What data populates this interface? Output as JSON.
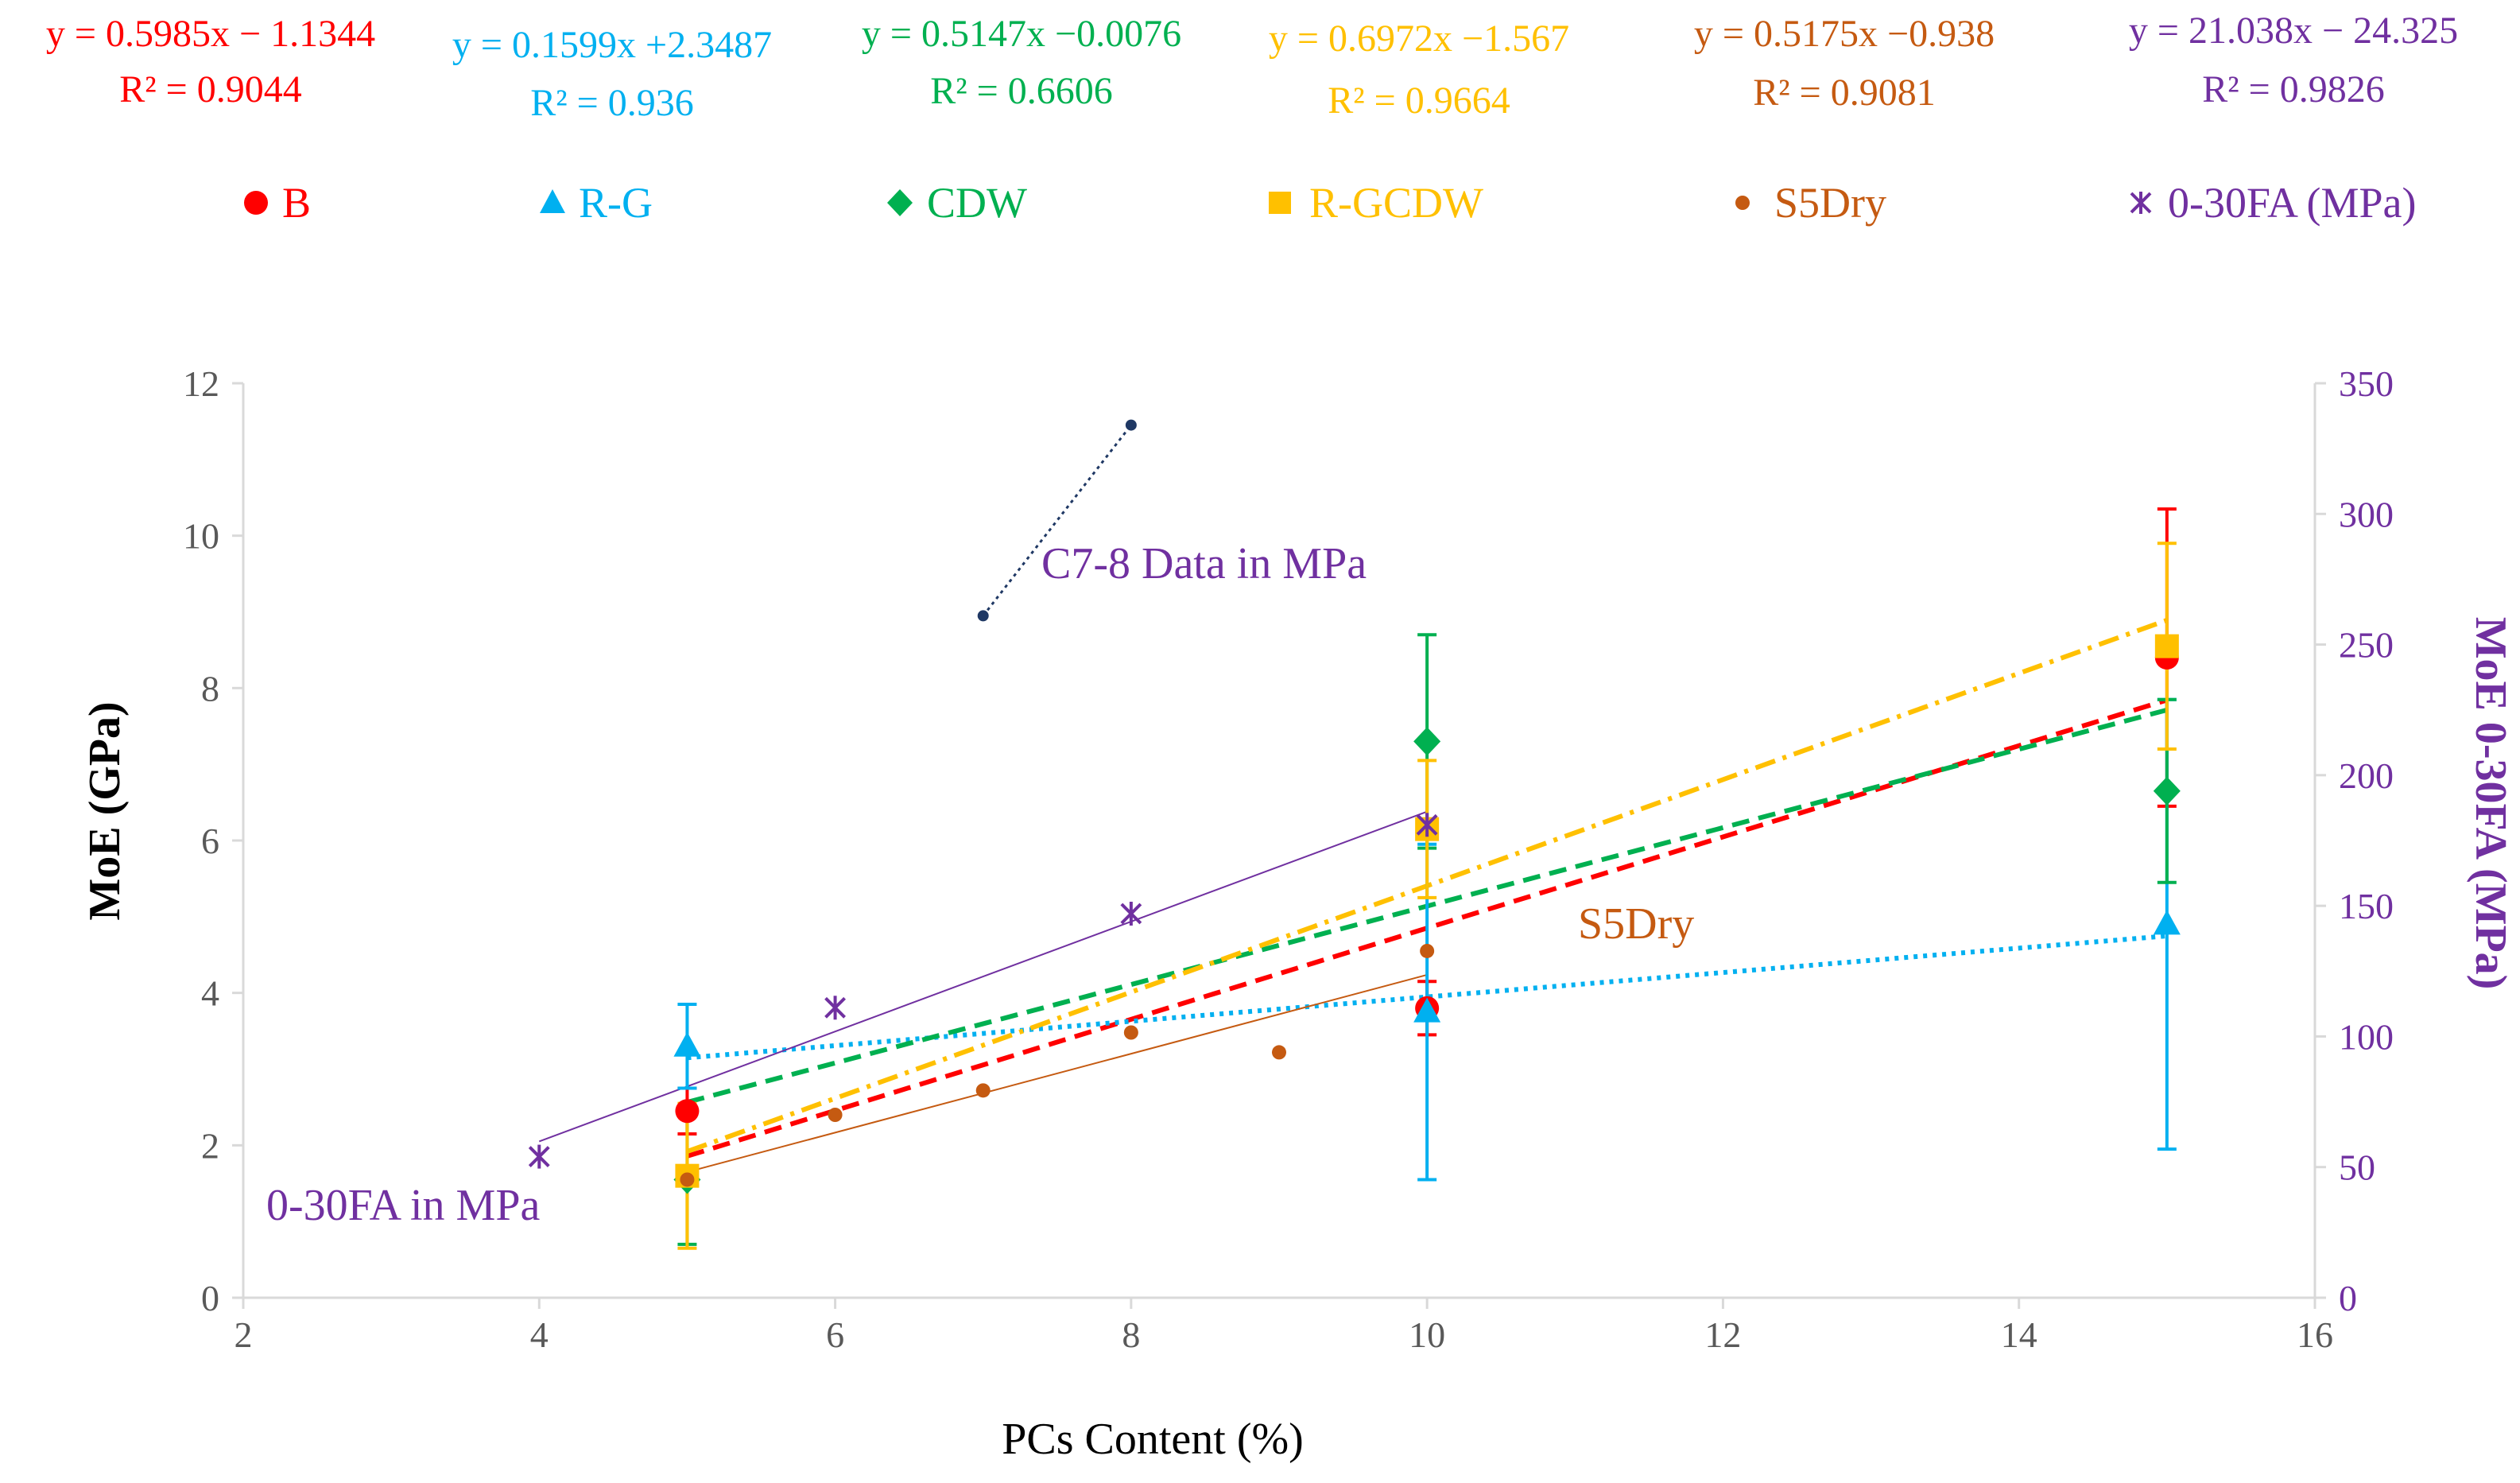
{
  "chart_data": {
    "type": "scatter",
    "xlabel": "PCs Content  (%)",
    "ylabel": "MoE (GPa)",
    "y2label": "MoE 0-30FA (MPa)",
    "xlim": [
      2,
      16
    ],
    "ylim": [
      0,
      12
    ],
    "y2lim": [
      0,
      350
    ],
    "xticks": [
      2,
      4,
      6,
      8,
      10,
      12,
      14,
      16
    ],
    "yticks": [
      0,
      2,
      4,
      6,
      8,
      10,
      12
    ],
    "y2ticks": [
      0,
      50,
      100,
      150,
      200,
      250,
      300,
      350
    ],
    "grid": false,
    "legend_position": "top",
    "series": [
      {
        "name": "B",
        "color": "#ff0000",
        "marker": "circle",
        "axis": "left",
        "x": [
          5,
          10,
          15
        ],
        "y": [
          2.45,
          3.8,
          8.4
        ],
        "err": [
          0.3,
          0.35,
          1.95
        ],
        "trend": {
          "slope": 0.5985,
          "intercept": -1.1344,
          "style": "dash",
          "range": [
            5,
            15
          ]
        },
        "equation": "y = 0.5985x − 1.1344",
        "r2": "R² = 0.9044"
      },
      {
        "name": "R-G",
        "color": "#00b0f0",
        "marker": "triangle",
        "axis": "left",
        "x": [
          5,
          10,
          15
        ],
        "y": [
          3.3,
          3.75,
          4.9
        ],
        "err": [
          0.55,
          2.2,
          2.95
        ],
        "trend": {
          "slope": 0.1599,
          "intercept": 2.3487,
          "style": "dot",
          "range": [
            5,
            15
          ]
        },
        "equation": "y = 0.1599x +2.3487",
        "r2": "R² = 0.936"
      },
      {
        "name": "CDW",
        "color": "#00b050",
        "marker": "diamond",
        "axis": "left",
        "x": [
          5,
          10,
          15
        ],
        "y": [
          1.55,
          7.3,
          6.65
        ],
        "err": [
          0.85,
          1.4,
          1.2
        ],
        "trend": {
          "slope": 0.5147,
          "intercept": -0.0076,
          "style": "dash",
          "range": [
            5,
            15
          ]
        },
        "equation": "y = 0.5147x −0.0076",
        "r2": "R² = 0.6606"
      },
      {
        "name": "R-GCDW",
        "color": "#ffc000",
        "marker": "square",
        "axis": "left",
        "x": [
          5,
          10,
          15
        ],
        "y": [
          1.6,
          6.15,
          8.55
        ],
        "err": [
          0.95,
          0.9,
          1.35
        ],
        "trend": {
          "slope": 0.6972,
          "intercept": -1.567,
          "style": "dashdot",
          "range": [
            5,
            15
          ]
        },
        "equation": "y = 0.6972x −1.567",
        "r2": "R² = 0.9664"
      },
      {
        "name": "S5Dry",
        "color": "#c55a11",
        "marker": "smallcircle",
        "axis": "left",
        "x": [
          5,
          6,
          7,
          8,
          9,
          10
        ],
        "y": [
          1.55,
          2.4,
          2.72,
          3.48,
          3.22,
          4.55
        ],
        "trend": {
          "slope": 0.5175,
          "intercept": -0.938,
          "style": "thin",
          "range": [
            5,
            10
          ]
        },
        "equation": "y = 0.5175x −0.938",
        "r2": "R² = 0.9081"
      },
      {
        "name": "0-30FA (MPa)",
        "color": "#7030a0",
        "marker": "star",
        "axis": "right",
        "x": [
          4,
          6,
          8,
          10
        ],
        "y": [
          54,
          111,
          147,
          181
        ],
        "trend": {
          "slope": 21.038,
          "intercept": -24.325,
          "style": "thin",
          "range": [
            4,
            10
          ]
        },
        "equation": "y = 21.038x − 24.325",
        "r2": "R² = 0.9826"
      },
      {
        "name": "C7-8",
        "color": "#1f3864",
        "marker": "dot",
        "axis": "right",
        "x": [
          7,
          8
        ],
        "y": [
          261,
          334
        ],
        "trend": {
          "style": "dotline"
        }
      }
    ],
    "annotations": [
      {
        "text": "C7-8 Data in MPa",
        "color": "#7030a0"
      },
      {
        "text": "S5Dry",
        "color": "#c55a11"
      },
      {
        "text": "0-30FA in MPa",
        "color": "#7030a0"
      }
    ]
  }
}
